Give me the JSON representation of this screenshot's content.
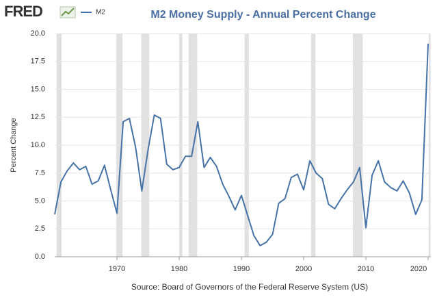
{
  "logo": "FRED",
  "chart_data": {
    "type": "line",
    "title": "M2 Money Supply - Annual Percent Change",
    "y_label": "Percent Change",
    "source": "Source: Board of Governors of the Federal Reserve System (US)",
    "x": [
      1960,
      1961,
      1962,
      1963,
      1964,
      1965,
      1966,
      1967,
      1968,
      1969,
      1970,
      1971,
      1972,
      1973,
      1974,
      1975,
      1976,
      1977,
      1978,
      1979,
      1980,
      1981,
      1982,
      1983,
      1984,
      1985,
      1986,
      1987,
      1988,
      1989,
      1990,
      1991,
      1992,
      1993,
      1994,
      1995,
      1996,
      1997,
      1998,
      1999,
      2000,
      2001,
      2002,
      2003,
      2004,
      2005,
      2006,
      2007,
      2008,
      2009,
      2010,
      2011,
      2012,
      2013,
      2014,
      2015,
      2016,
      2017,
      2018,
      2019,
      2020
    ],
    "series": [
      {
        "name": "M2",
        "color": "#4572a7",
        "values": [
          3.8,
          6.7,
          7.7,
          8.4,
          7.8,
          8.1,
          6.5,
          6.8,
          8.2,
          6.0,
          3.9,
          12.1,
          12.4,
          9.8,
          5.9,
          9.6,
          12.7,
          12.4,
          8.3,
          7.8,
          8.0,
          9.0,
          9.0,
          12.1,
          8.0,
          8.9,
          8.1,
          6.5,
          5.4,
          4.2,
          5.5,
          3.7,
          1.9,
          1.0,
          1.3,
          2.0,
          4.8,
          5.2,
          7.1,
          7.4,
          6.0,
          8.6,
          7.5,
          7.0,
          4.7,
          4.3,
          5.2,
          6.0,
          6.7,
          8.0,
          2.6,
          7.3,
          8.6,
          6.7,
          6.2,
          5.9,
          6.8,
          5.7,
          3.8,
          5.1,
          19.1
        ]
      }
    ],
    "recessions": [
      [
        1960.3,
        1961.1
      ],
      [
        1969.9,
        1970.9
      ],
      [
        1973.9,
        1975.2
      ],
      [
        1980.0,
        1980.5
      ],
      [
        1981.5,
        1982.9
      ],
      [
        1990.5,
        1991.2
      ],
      [
        2001.2,
        2001.9
      ],
      [
        2007.9,
        2009.5
      ],
      [
        2020.1,
        2020.4
      ]
    ],
    "xlim": [
      1960,
      2020
    ],
    "xticks": [
      1970,
      1980,
      1990,
      2000,
      2010,
      2020
    ],
    "ylim": [
      0,
      20
    ],
    "yticks": [
      {
        "value": 0,
        "label": "0.0"
      },
      2.5,
      {
        "value": 5,
        "label": "5.0"
      },
      7.5,
      {
        "value": 10,
        "label": "10.0"
      },
      12.5,
      {
        "value": 15,
        "label": "15.0"
      },
      17.5,
      {
        "value": 20,
        "label": "20.0"
      }
    ],
    "grid": true,
    "recession_color": "#e1e1e1"
  }
}
